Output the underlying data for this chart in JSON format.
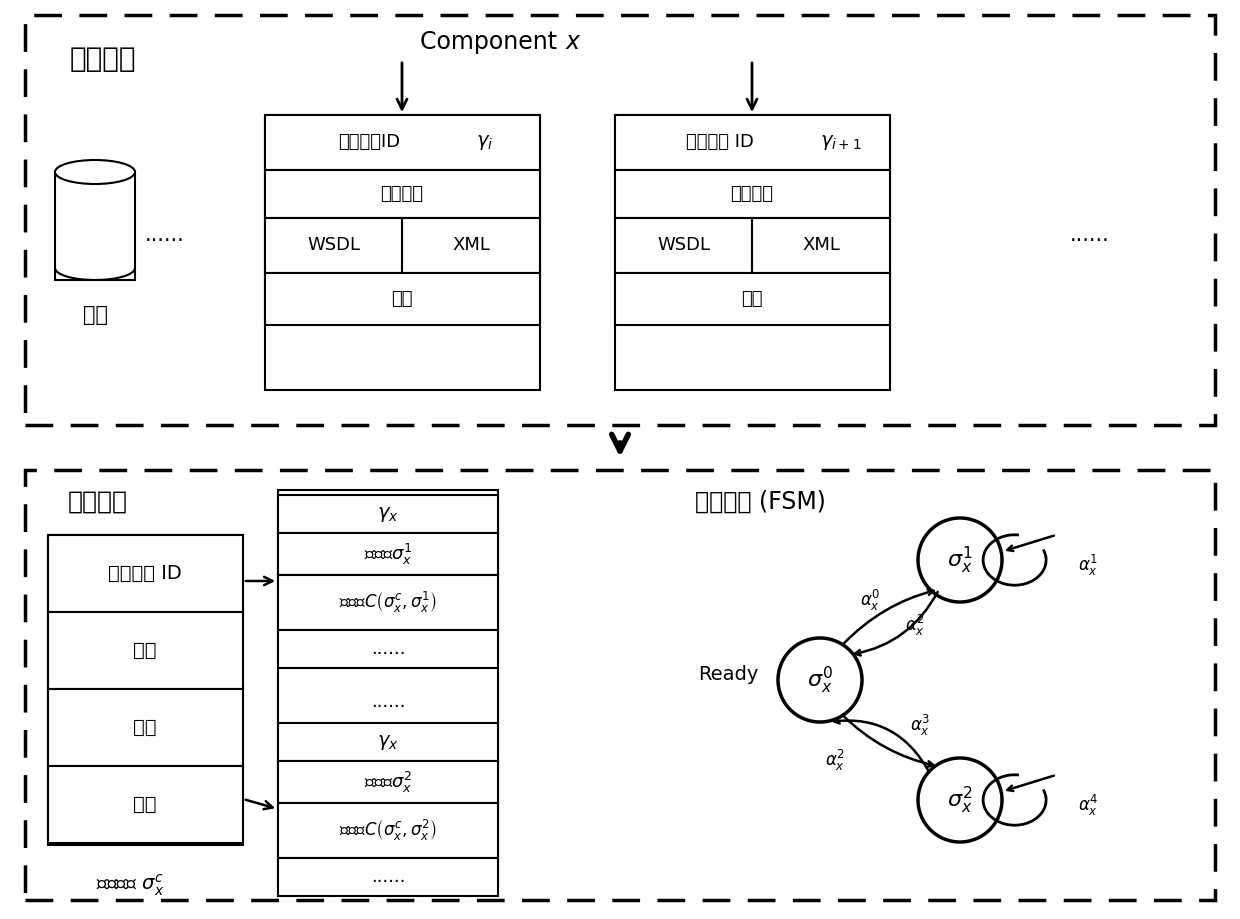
{
  "bg_color": "#ffffff",
  "abstract_service_label": "抽象服务",
  "concrete_service_label": "具体服务",
  "fsm_label": "状态模型 (FSM)",
  "component_icon_label": "构件",
  "ready_label": "Ready"
}
